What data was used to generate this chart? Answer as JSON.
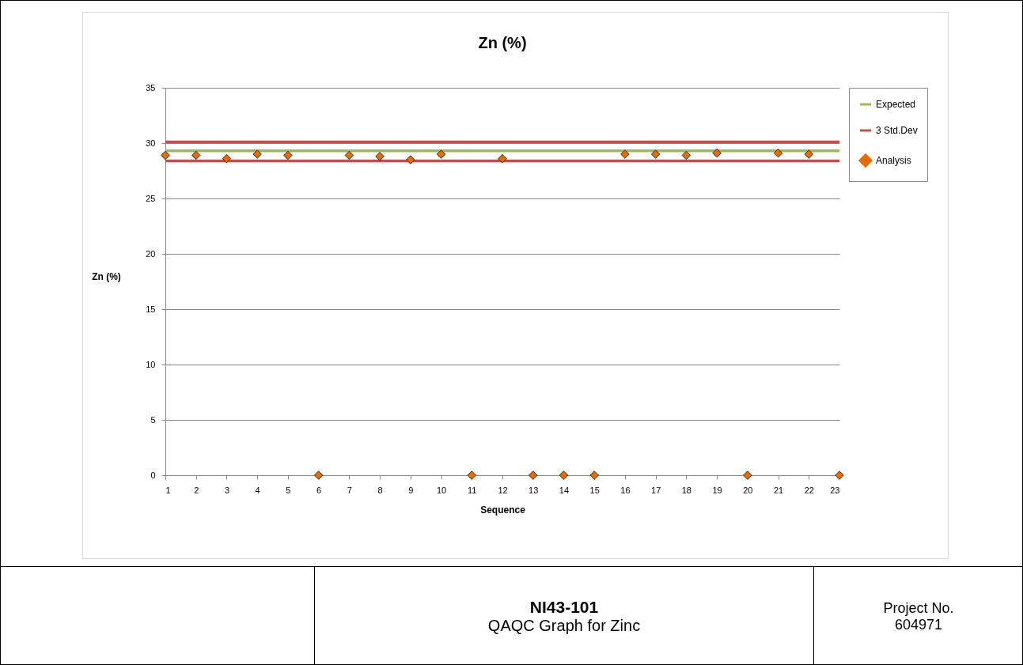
{
  "chart_data": {
    "type": "scatter",
    "title": "Zn (%)",
    "xlabel": "Sequence",
    "ylabel": "Zn (%)",
    "x": [
      1,
      2,
      3,
      4,
      5,
      6,
      7,
      8,
      9,
      10,
      11,
      12,
      13,
      14,
      15,
      16,
      17,
      18,
      19,
      20,
      21,
      22,
      23
    ],
    "series": [
      {
        "name": "Analysis",
        "color": "#e46c0a",
        "values": [
          28.9,
          28.9,
          28.6,
          29.0,
          28.9,
          0,
          28.9,
          28.8,
          28.5,
          29.0,
          0,
          28.6,
          0,
          0,
          0,
          29.0,
          29.0,
          28.9,
          29.1,
          0,
          29.1,
          29.0,
          0
        ]
      }
    ],
    "ref_lines": [
      {
        "axis": "y",
        "value": 29.3,
        "label": "Expected",
        "color": "#9bbb59"
      },
      {
        "axis": "y",
        "value": 30.1,
        "label": "3 Std.Dev",
        "color": "#c0504d"
      },
      {
        "axis": "y",
        "value": 28.4,
        "color": "#c0504d"
      }
    ],
    "xlim": [
      1,
      23
    ],
    "xticks": [
      1,
      2,
      3,
      4,
      5,
      6,
      7,
      8,
      9,
      10,
      11,
      12,
      13,
      14,
      15,
      16,
      17,
      18,
      19,
      20,
      21,
      22,
      23
    ],
    "ylim": [
      0,
      35
    ],
    "yticks": [
      0,
      5,
      10,
      15,
      20,
      25,
      30,
      35
    ],
    "grid": "y",
    "legend": "right",
    "marker": "diamond",
    "annotations": [
      "NI43-101",
      "QAQC Graph for Zinc",
      "Project No.",
      "604971"
    ]
  }
}
